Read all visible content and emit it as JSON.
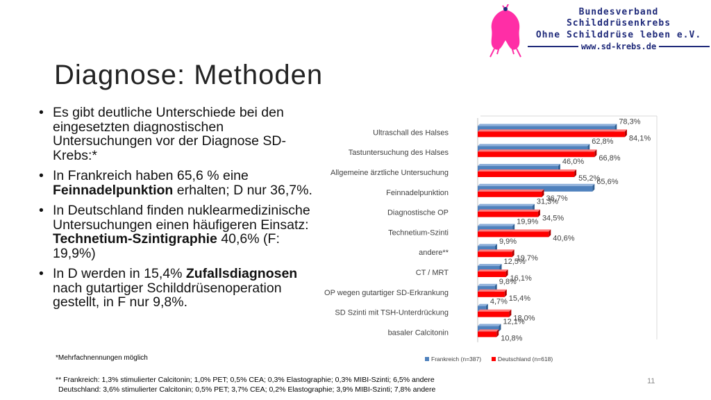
{
  "org": {
    "line1": "Bundesverband Schilddrüsenkrebs",
    "line2": "Ohne Schilddrüse leben e.V.",
    "website": "www.sd-krebs.de"
  },
  "slide": {
    "title": "Diagnose:  Methoden",
    "page_number": "11",
    "footnote1": "*Mehrfachnennungen möglich",
    "footnote2a": "** Frankreich: 1,3% stimulierter Calcitonin; 1,0% PET; 0,5% CEA; 0,3% Elastographie; 0,3% MIBI-Szinti; 6,5% andere",
    "footnote2b": "Deutschland: 3,6% stimulierter Calcitonin; 0,5% PET; 3,7% CEA; 0,2% Elastographie; 3,9% MIBI-Szinti; 7,8% andere"
  },
  "bullets": [
    {
      "parts": [
        {
          "t": "Es gibt deutliche Unterschiede bei den eingesetzten diagnostischen Untersuchungen vor der Diagnose SD-Krebs:*",
          "b": false
        }
      ]
    },
    {
      "parts": [
        {
          "t": "In Frankreich haben 65,6 % eine ",
          "b": false
        },
        {
          "t": "Feinnadelpunktion",
          "b": true
        },
        {
          "t": " erhalten; D nur 36,7%.",
          "b": false
        }
      ]
    },
    {
      "parts": [
        {
          "t": "In Deutschland finden nuklearmedizinische Untersuchungen einen häufigeren Einsatz: ",
          "b": false
        },
        {
          "t": "Technetium-Szintigraphie",
          "b": true
        },
        {
          "t": " 40,6% (F: 19,9%)",
          "b": false
        }
      ]
    },
    {
      "parts": [
        {
          "t": "In D werden in 15,4% ",
          "b": false
        },
        {
          "t": "Zufallsdiagnosen",
          "b": true
        },
        {
          "t": " nach gutartiger Schilddrüsenoperation gestellt, in F nur 9,8%.",
          "b": false
        }
      ]
    }
  ],
  "colors": {
    "frankreich": "#4f81bd",
    "deutschland": "#ff0000"
  },
  "chart_data": {
    "type": "bar",
    "orientation": "horizontal",
    "categories": [
      "Ultraschall des Halses",
      "Tastuntersuchung des Halses",
      "Allgemeine ärztliche Untersuchung",
      "Feinnadelpunktion",
      "Diagnostische OP",
      "Technetium-Szinti",
      "andere**",
      "CT / MRT",
      "OP wegen gutartiger SD-Erkrankung",
      "SD Szinti mit TSH-Unterdrückung",
      "basaler Calcitonin"
    ],
    "series": [
      {
        "name": "Frankreich (n=387)",
        "values": [
          78.3,
          62.8,
          46.0,
          65.6,
          31.3,
          19.9,
          9.9,
          12.5,
          9.8,
          4.7,
          12.1
        ],
        "labels": [
          "78,3%",
          "62,8%",
          "46,0%",
          "65,6%",
          "31,3%",
          "19,9%",
          "9,9%",
          "12,5%",
          "9,8%",
          "4,7%",
          "12,1%"
        ]
      },
      {
        "name": "Deutschland (n=618)",
        "values": [
          84.1,
          66.8,
          55.2,
          36.7,
          34.5,
          40.6,
          19.7,
          16.1,
          15.4,
          18.0,
          10.8
        ],
        "labels": [
          "84,1%",
          "66,8%",
          "55,2%",
          "36,7%",
          "34,5%",
          "40,6%",
          "19,7%",
          "16,1%",
          "15,4%",
          "18,0%",
          "10,8%"
        ]
      }
    ],
    "xlim": [
      0,
      100
    ],
    "legend": "bottom"
  }
}
